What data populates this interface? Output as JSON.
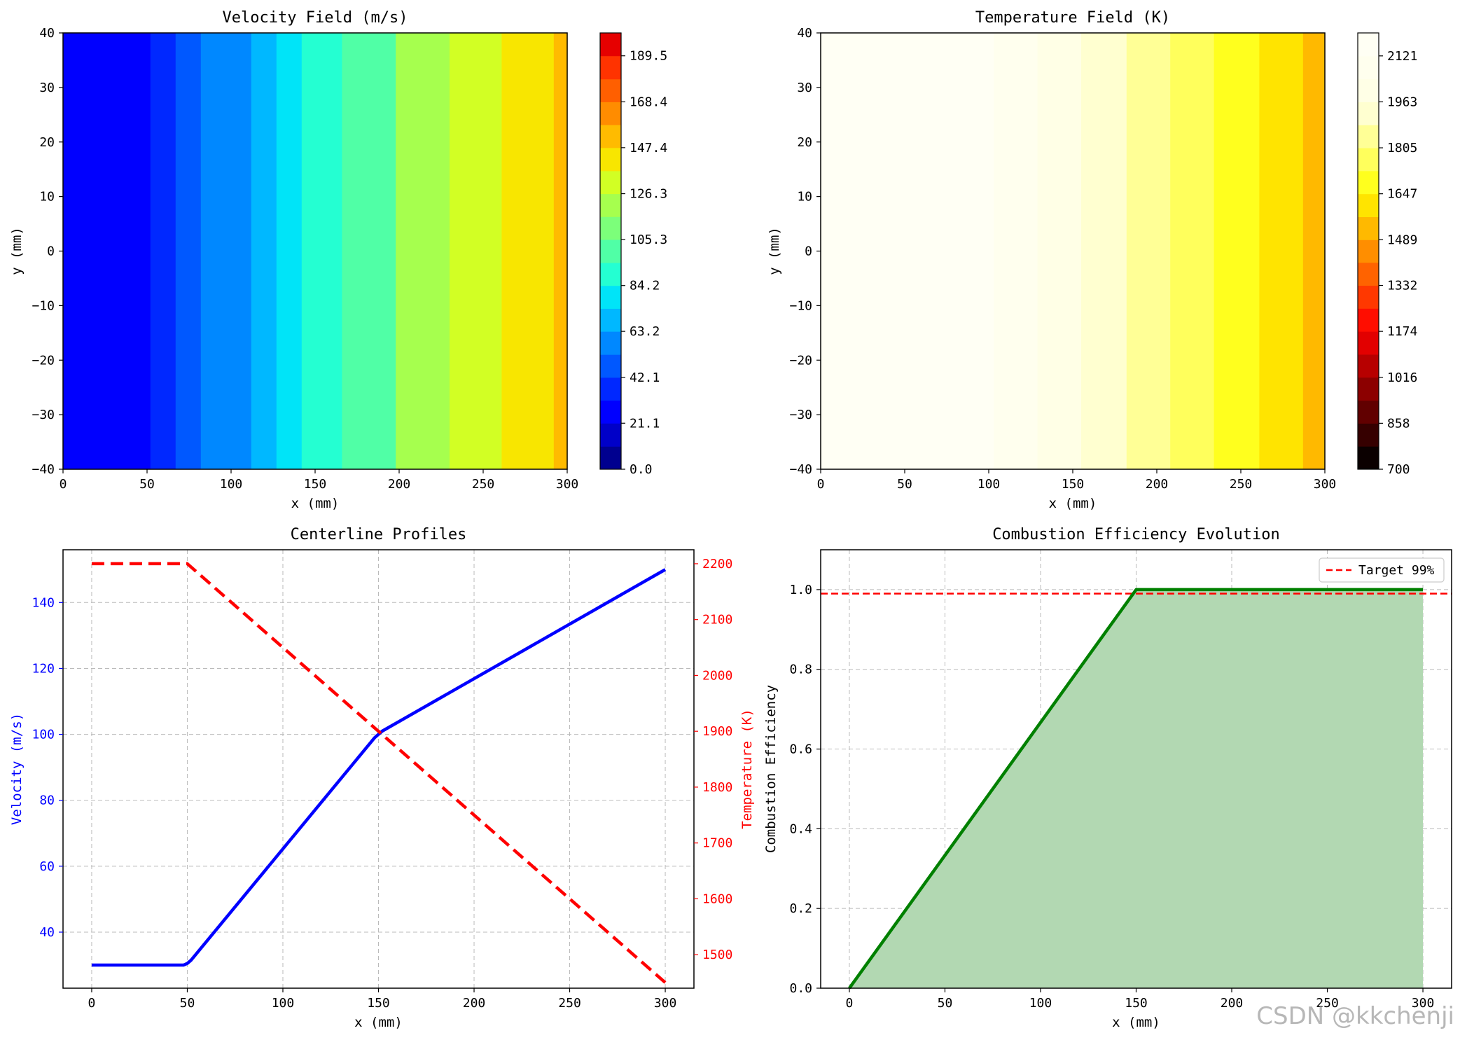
{
  "watermark": "CSDN @kkchenji",
  "chart_data": [
    {
      "type": "heatmap",
      "id": "velocity",
      "title": "Velocity Field (m/s)",
      "xlabel": "x (mm)",
      "ylabel": "y (mm)",
      "xlim": [
        0,
        300
      ],
      "ylim": [
        -40,
        40
      ],
      "xticks": [
        0,
        50,
        100,
        150,
        200,
        250,
        300
      ],
      "yticks": [
        40,
        30,
        20,
        10,
        0,
        -10,
        -20,
        -30,
        -40
      ],
      "bands": [
        {
          "x0": 0,
          "x1": 52,
          "value": 30
        },
        {
          "x0": 52,
          "x1": 67,
          "value": 36
        },
        {
          "x0": 67,
          "x1": 82,
          "value": 45
        },
        {
          "x0": 82,
          "x1": 97,
          "value": 55
        },
        {
          "x0": 97,
          "x1": 112,
          "value": 63
        },
        {
          "x0": 112,
          "x1": 127,
          "value": 72
        },
        {
          "x0": 127,
          "x1": 142,
          "value": 80
        },
        {
          "x0": 142,
          "x1": 166,
          "value": 90
        },
        {
          "x0": 166,
          "x1": 198,
          "value": 105
        },
        {
          "x0": 198,
          "x1": 230,
          "value": 118
        },
        {
          "x0": 230,
          "x1": 261,
          "value": 130
        },
        {
          "x0": 261,
          "x1": 292,
          "value": 142
        },
        {
          "x0": 292,
          "x1": 300,
          "value": 152
        }
      ],
      "colorbar": {
        "levels": [
          0,
          10.5,
          21.1,
          31.6,
          42.1,
          52.6,
          63.2,
          73.7,
          84.2,
          94.7,
          105.3,
          115.8,
          126.3,
          136.8,
          147.4,
          157.9,
          168.4,
          178.9,
          189.5,
          200
        ],
        "colors": [
          "#00008f",
          "#0000c8",
          "#0000ff",
          "#0028ff",
          "#0058ff",
          "#0088ff",
          "#00b8ff",
          "#00e4f8",
          "#24ffd2",
          "#50ffa6",
          "#7cff7a",
          "#a6ff4e",
          "#d2ff24",
          "#f8e600",
          "#ffbb00",
          "#ff8c00",
          "#ff5f00",
          "#ff3300",
          "#e60000",
          "#9a0000"
        ],
        "tick_labels": [
          "0.0",
          "21.1",
          "42.1",
          "63.2",
          "84.2",
          "105.3",
          "126.3",
          "147.4",
          "168.4",
          "189.5"
        ]
      }
    },
    {
      "type": "heatmap",
      "id": "temperature",
      "title": "Temperature Field (K)",
      "xlabel": "x (mm)",
      "ylabel": "y (mm)",
      "xlim": [
        0,
        300
      ],
      "ylim": [
        -40,
        40
      ],
      "xticks": [
        0,
        50,
        100,
        150,
        200,
        250,
        300
      ],
      "yticks": [
        40,
        30,
        20,
        10,
        0,
        -10,
        -20,
        -30,
        -40
      ],
      "bands": [
        {
          "x0": 0,
          "x1": 76,
          "value": 2200
        },
        {
          "x0": 76,
          "x1": 103,
          "value": 2150
        },
        {
          "x0": 103,
          "x1": 129,
          "value": 2070
        },
        {
          "x0": 129,
          "x1": 155,
          "value": 1990
        },
        {
          "x0": 155,
          "x1": 182,
          "value": 1910
        },
        {
          "x0": 182,
          "x1": 208,
          "value": 1830
        },
        {
          "x0": 208,
          "x1": 234,
          "value": 1750
        },
        {
          "x0": 234,
          "x1": 261,
          "value": 1670
        },
        {
          "x0": 261,
          "x1": 287,
          "value": 1590
        },
        {
          "x0": 287,
          "x1": 300,
          "value": 1520
        }
      ],
      "colorbar": {
        "levels": [
          700,
          779,
          858,
          937,
          1016,
          1095,
          1174,
          1253,
          1332,
          1411,
          1489,
          1568,
          1647,
          1726,
          1805,
          1884,
          1963,
          2042,
          2121,
          2200
        ],
        "colors": [
          "#0b0000",
          "#360000",
          "#610000",
          "#8c0000",
          "#b70000",
          "#e20000",
          "#ff0d00",
          "#ff3800",
          "#ff6300",
          "#ff8e00",
          "#ffb900",
          "#ffe400",
          "#ffff1e",
          "#ffff5c",
          "#ffff96",
          "#ffffd0",
          "#ffffe6",
          "#ffffee",
          "#fffff4"
        ],
        "tick_labels": [
          "700",
          "858",
          "1016",
          "1174",
          "1332",
          "1489",
          "1647",
          "1805",
          "1963",
          "2121"
        ]
      }
    },
    {
      "type": "line",
      "id": "centerline",
      "title": "Centerline Profiles",
      "xlabel": "x (mm)",
      "ylabel": "Velocity (m/s)",
      "ylabel_right": "Temperature (K)",
      "xlim": [
        -15,
        315
      ],
      "ylim": [
        23,
        156
      ],
      "ylim_right": [
        1440,
        2225
      ],
      "xticks": [
        0,
        50,
        100,
        150,
        200,
        250,
        300
      ],
      "yticks": [
        40,
        60,
        80,
        100,
        120,
        140
      ],
      "yticks_right": [
        1500,
        1600,
        1700,
        1800,
        1900,
        2000,
        2100,
        2200
      ],
      "grid": true,
      "series": [
        {
          "name": "Velocity",
          "axis": "left",
          "color": "#0000ff",
          "style": "solid",
          "x": [
            0,
            48,
            50,
            52,
            148,
            150,
            152,
            300
          ],
          "y": [
            30,
            30,
            30.5,
            31.5,
            99,
            100,
            101,
            150
          ]
        },
        {
          "name": "Temperature",
          "axis": "right",
          "color": "#ff0000",
          "style": "dashed",
          "x": [
            0,
            50,
            300
          ],
          "y": [
            2200,
            2200,
            1450
          ]
        }
      ]
    },
    {
      "type": "area",
      "id": "efficiency",
      "title": "Combustion Efficiency Evolution",
      "xlabel": "x (mm)",
      "ylabel": "Combustion Efficiency",
      "xlim": [
        -15,
        315
      ],
      "ylim": [
        0,
        1.1
      ],
      "xticks": [
        0,
        50,
        100,
        150,
        200,
        250,
        300
      ],
      "yticks": [
        0.0,
        0.2,
        0.4,
        0.6,
        0.8,
        1.0
      ],
      "ytick_labels": [
        "0.0",
        "0.2",
        "0.4",
        "0.6",
        "0.8",
        "1.0"
      ],
      "grid": true,
      "series": [
        {
          "name": "Efficiency",
          "color": "#008000",
          "fill": "#b2d8b2",
          "x": [
            0,
            150,
            300
          ],
          "y": [
            0,
            1.0,
            1.0
          ]
        }
      ],
      "hline": {
        "y": 0.99,
        "color": "#ff0000",
        "style": "dashed",
        "label": "Target 99%"
      },
      "legend": "top-right"
    }
  ]
}
